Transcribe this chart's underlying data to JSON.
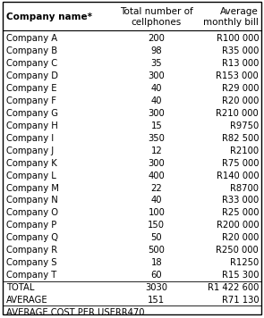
{
  "col_headers": [
    "Company name*",
    "Total number of\ncellphones",
    "Average\nmonthly bill"
  ],
  "rows": [
    [
      "Company A",
      "200",
      "R100 000"
    ],
    [
      "Company B",
      "98",
      "R35 000"
    ],
    [
      "Company C",
      "35",
      "R13 000"
    ],
    [
      "Company D",
      "300",
      "R153 000"
    ],
    [
      "Company E",
      "40",
      "R29 000"
    ],
    [
      "Company F",
      "40",
      "R20 000"
    ],
    [
      "Company G",
      "300",
      "R210 000"
    ],
    [
      "Company H",
      "15",
      "R9750"
    ],
    [
      "Company I",
      "350",
      "R82 500"
    ],
    [
      "Company J",
      "12",
      "R2100"
    ],
    [
      "Company K",
      "300",
      "R75 000"
    ],
    [
      "Company L",
      "400",
      "R140 000"
    ],
    [
      "Company M",
      "22",
      "R8700"
    ],
    [
      "Company N",
      "40",
      "R33 000"
    ],
    [
      "Company O",
      "100",
      "R25 000"
    ],
    [
      "Company P",
      "150",
      "R200 000"
    ],
    [
      "Company Q",
      "50",
      "R20 000"
    ],
    [
      "Company R",
      "500",
      "R250 000"
    ],
    [
      "Company S",
      "18",
      "R1250"
    ],
    [
      "Company T",
      "60",
      "R15 300"
    ]
  ],
  "total_row": [
    "TOTAL",
    "3030",
    "R1 422 600"
  ],
  "average_row": [
    "AVERAGE",
    "151",
    "R71 130"
  ],
  "footer": "AVERAGE COST PER USERR470",
  "bg_color": "#ffffff",
  "border_color": "#000000",
  "fs": 7.2,
  "hfs": 7.5
}
